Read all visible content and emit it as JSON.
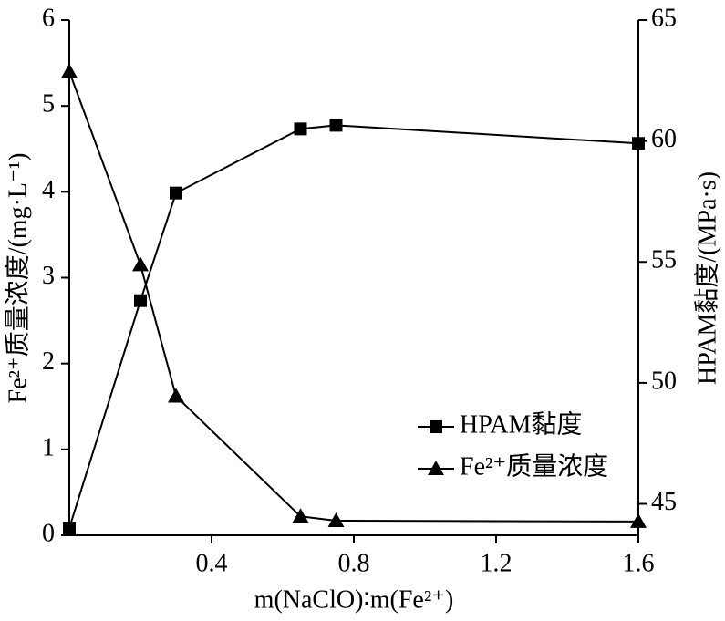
{
  "chart_data": {
    "type": "line",
    "x_label": "m(NaClO)∶m(Fe²⁺)",
    "y_label": "Fe²⁺质量浓度/(mg·L⁻¹)",
    "y2_label": "HPAM黏度/(MPa·s)",
    "x": [
      0,
      0.2,
      0.3,
      0.65,
      0.75,
      1.6
    ],
    "series": [
      {
        "name": "HPAM黏度",
        "color": "#000000",
        "marker": "square",
        "axis": "y2",
        "values": [
          44.0,
          53.4,
          57.85,
          60.5,
          60.65,
          59.9
        ]
      },
      {
        "name": "Fe²⁺质量浓度",
        "color": "#000000",
        "marker": "triangle",
        "axis": "y",
        "values": [
          5.4,
          3.15,
          1.62,
          0.22,
          0.17,
          0.16
        ]
      }
    ],
    "xlim": [
      0,
      1.6
    ],
    "xticks": [
      0.4,
      0.8,
      1.2,
      1.6
    ],
    "ylim": [
      0,
      6
    ],
    "yticks": [
      0,
      1,
      2,
      3,
      4,
      5,
      6
    ],
    "y2lim": [
      43.7,
      65
    ],
    "y2ticks": [
      45,
      50,
      55,
      60,
      65
    ],
    "legend": "lower right"
  }
}
